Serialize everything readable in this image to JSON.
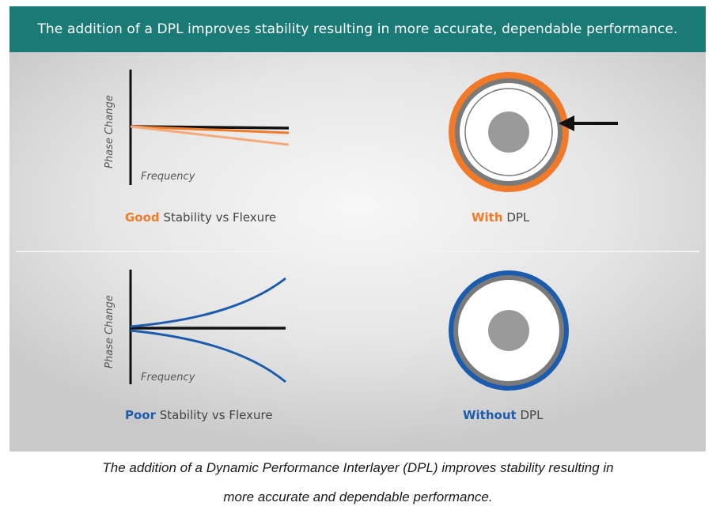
{
  "banner": {
    "text": "The addition of a DPL improves stability resulting in more accurate, dependable performance."
  },
  "top_chart": {
    "ylabel": "Phase Change",
    "xlabel": "Frequency",
    "caption_highlight": "Good",
    "caption_rest": " Stability vs Flexure",
    "line_colors": [
      "#111111",
      "#f07a28",
      "#f5aa7a"
    ]
  },
  "top_cable": {
    "caption_highlight": "With",
    "caption_rest": " DPL",
    "outer_color": "#f07a28",
    "arrow": "pointer-arrow"
  },
  "bottom_chart": {
    "ylabel": "Phase Change",
    "xlabel": "Frequency",
    "caption_highlight": "Poor",
    "caption_rest": " Stability vs Flexure",
    "line_colors": [
      "#111111",
      "#1c5cae"
    ]
  },
  "bottom_cable": {
    "caption_highlight": "Without",
    "caption_rest": " DPL",
    "outer_color": "#1c5cae"
  },
  "footer": {
    "line1": "The addition of a Dynamic Performance Interlayer (DPL) improves stability resulting in",
    "line2": "more accurate and dependable performance."
  },
  "colors": {
    "banner_bg": "#1a7a76",
    "accent_orange": "#f07a28",
    "accent_blue": "#1c5cae",
    "shield_gray": "#7a7a7a",
    "core_gray": "#9a9a9a"
  }
}
